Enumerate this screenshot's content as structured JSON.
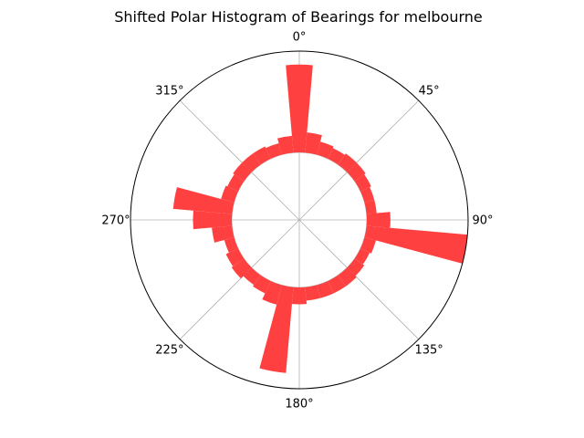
{
  "chart_data": {
    "type": "bar",
    "polar": true,
    "title": "Shifted Polar Histogram of Bearings for melbourne",
    "theta_zero_location": "N",
    "theta_direction": "clockwise",
    "bar_color": "#ff4040",
    "grid": true,
    "angle_ticks": [
      {
        "deg": 0,
        "label": "0°"
      },
      {
        "deg": 45,
        "label": "45°"
      },
      {
        "deg": 90,
        "label": "90°"
      },
      {
        "deg": 135,
        "label": "135°"
      },
      {
        "deg": 180,
        "label": "180°"
      },
      {
        "deg": 225,
        "label": "225°"
      },
      {
        "deg": 270,
        "label": "270°"
      },
      {
        "deg": 315,
        "label": "315°"
      }
    ],
    "inner_radius": 0.4,
    "rmax": 1.0,
    "bin_width_deg": 10,
    "bin_centers_deg": [
      0,
      10,
      20,
      30,
      40,
      50,
      60,
      70,
      80,
      90,
      100,
      110,
      120,
      130,
      140,
      150,
      160,
      170,
      180,
      190,
      200,
      210,
      220,
      230,
      240,
      250,
      260,
      270,
      280,
      290,
      300,
      310,
      320,
      330,
      340,
      350
    ],
    "values": [
      0.92,
      0.52,
      0.48,
      0.47,
      0.48,
      0.48,
      0.47,
      0.46,
      0.46,
      0.54,
      1.0,
      0.47,
      0.46,
      0.47,
      0.48,
      0.48,
      0.48,
      0.48,
      0.5,
      0.91,
      0.52,
      0.48,
      0.47,
      0.49,
      0.48,
      0.46,
      0.52,
      0.63,
      0.75,
      0.48,
      0.47,
      0.48,
      0.48,
      0.48,
      0.47,
      0.5
    ]
  }
}
